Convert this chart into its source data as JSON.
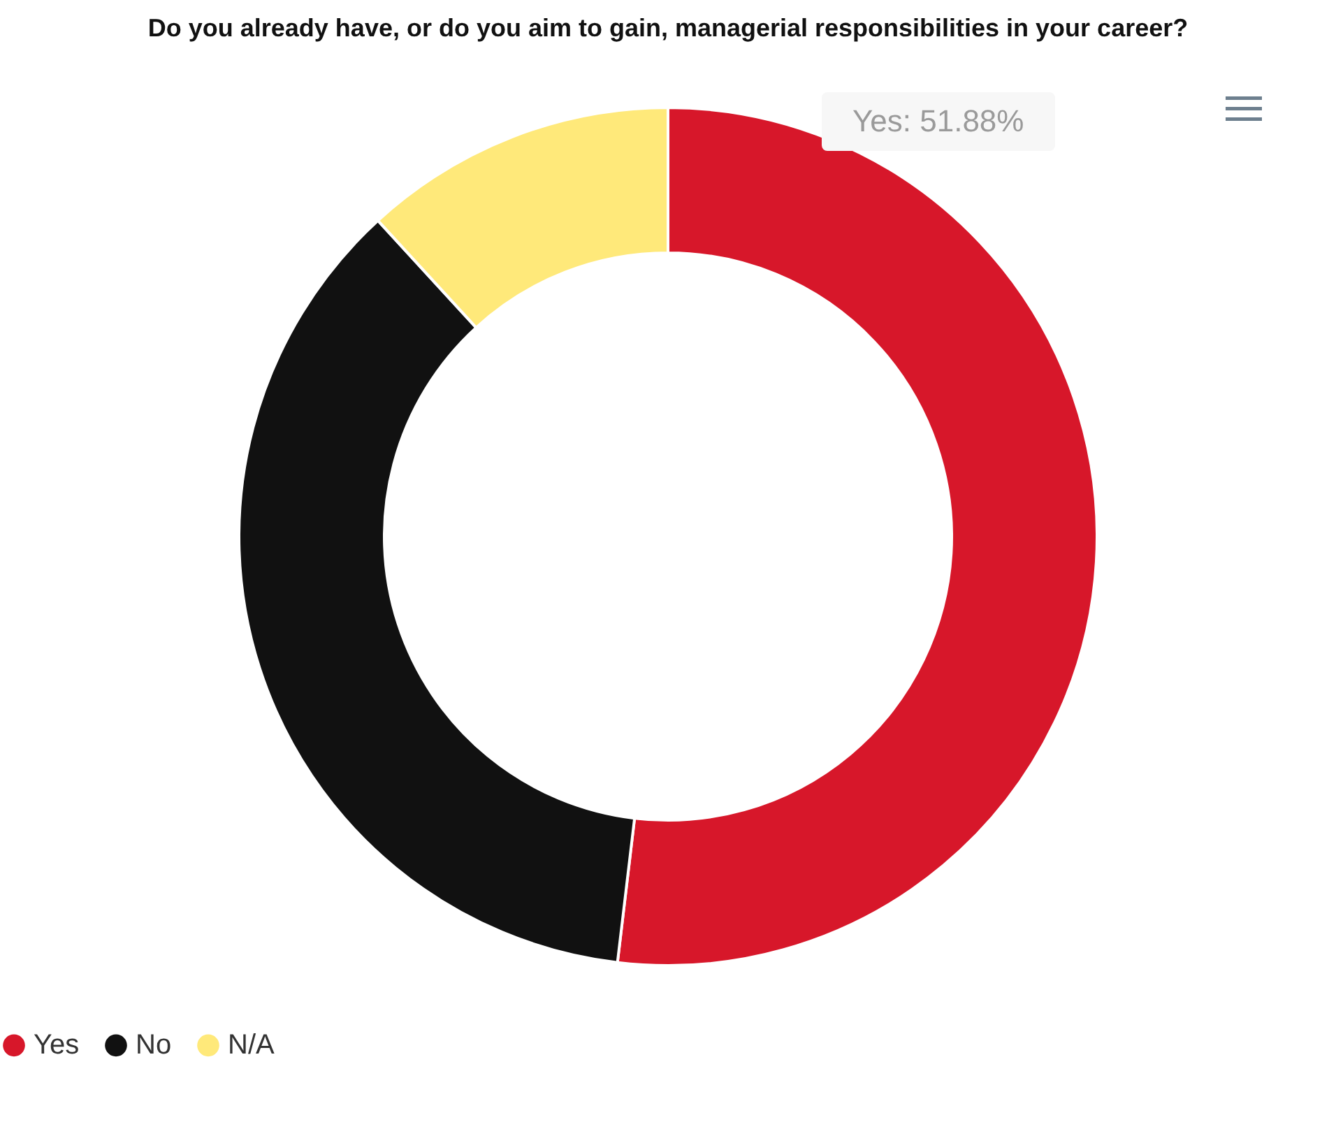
{
  "chart_data": {
    "type": "donut",
    "title": "Do you already have, or do you aim to gain, managerial responsibilities in your career?",
    "categories": [
      "Yes",
      "No",
      "N/A"
    ],
    "values": [
      51.88,
      36.3,
      11.82
    ],
    "colors": [
      "#d7172a",
      "#111111",
      "#ffe97a"
    ],
    "legend": "bottom",
    "annotations": [
      "Yes: 51.88%"
    ]
  }
}
